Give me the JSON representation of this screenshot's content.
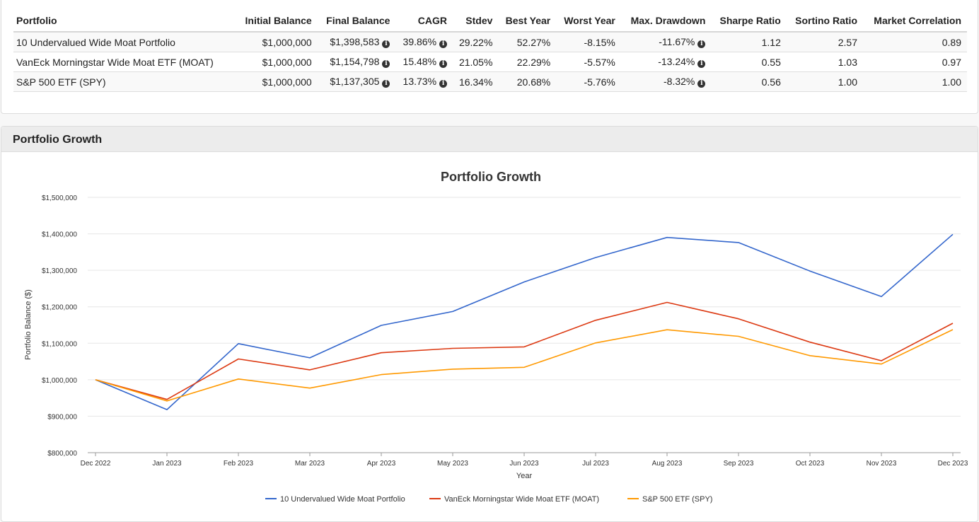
{
  "table": {
    "headers": [
      "Portfolio",
      "Initial Balance",
      "Final Balance",
      "CAGR",
      "Stdev",
      "Best Year",
      "Worst Year",
      "Max. Drawdown",
      "Sharpe Ratio",
      "Sortino Ratio",
      "Market Correlation"
    ],
    "rows": [
      {
        "name": "10 Undervalued Wide Moat Portfolio",
        "initial": "$1,000,000",
        "final": "$1,398,583",
        "cagr": "39.86%",
        "stdev": "29.22%",
        "best": "52.27%",
        "worst": "-8.15%",
        "drawdown": "-11.67%",
        "sharpe": "1.12",
        "sortino": "2.57",
        "corr": "0.89"
      },
      {
        "name": "VanEck Morningstar Wide Moat ETF (MOAT)",
        "initial": "$1,000,000",
        "final": "$1,154,798",
        "cagr": "15.48%",
        "stdev": "21.05%",
        "best": "22.29%",
        "worst": "-5.57%",
        "drawdown": "-13.24%",
        "sharpe": "0.55",
        "sortino": "1.03",
        "corr": "0.97"
      },
      {
        "name": "S&P 500 ETF (SPY)",
        "initial": "$1,000,000",
        "final": "$1,137,305",
        "cagr": "13.73%",
        "stdev": "16.34%",
        "best": "20.68%",
        "worst": "-5.76%",
        "drawdown": "-8.32%",
        "sharpe": "0.56",
        "sortino": "1.00",
        "corr": "1.00"
      }
    ]
  },
  "panel": {
    "title": "Portfolio Growth"
  },
  "info_icon": "info-circle-icon",
  "chart_data": {
    "type": "line",
    "title": "Portfolio Growth",
    "xlabel": "Year",
    "ylabel": "Portfolio Balance ($)",
    "ylim": [
      800000,
      1500000
    ],
    "yticks": [
      800000,
      900000,
      1000000,
      1100000,
      1200000,
      1300000,
      1400000,
      1500000
    ],
    "ytick_labels": [
      "$800,000",
      "$900,000",
      "$1,000,000",
      "$1,100,000",
      "$1,200,000",
      "$1,300,000",
      "$1,400,000",
      "$1,500,000"
    ],
    "categories": [
      "Dec 2022",
      "Jan 2023",
      "Feb 2023",
      "Mar 2023",
      "Apr 2023",
      "May 2023",
      "Jun 2023",
      "Jul 2023",
      "Aug 2023",
      "Sep 2023",
      "Oct 2023",
      "Nov 2023",
      "Dec 2023"
    ],
    "grid": true,
    "legend_position": "bottom",
    "series": [
      {
        "name": "10 Undervalued Wide Moat Portfolio",
        "color": "#3366cc",
        "values": [
          1000000,
          918000,
          1099000,
          1060000,
          1149000,
          1187000,
          1268000,
          1335000,
          1390000,
          1376000,
          1298000,
          1228000,
          1398583
        ]
      },
      {
        "name": "VanEck Morningstar Wide Moat ETF (MOAT)",
        "color": "#dc3912",
        "values": [
          1000000,
          946000,
          1057000,
          1027000,
          1074000,
          1086000,
          1090000,
          1163000,
          1212000,
          1167000,
          1103000,
          1052000,
          1154798
        ]
      },
      {
        "name": "S&P 500 ETF (SPY)",
        "color": "#ff9900",
        "values": [
          1000000,
          942000,
          1002000,
          977000,
          1014000,
          1029000,
          1034000,
          1101000,
          1137000,
          1119000,
          1066000,
          1043000,
          1137305
        ]
      }
    ]
  }
}
